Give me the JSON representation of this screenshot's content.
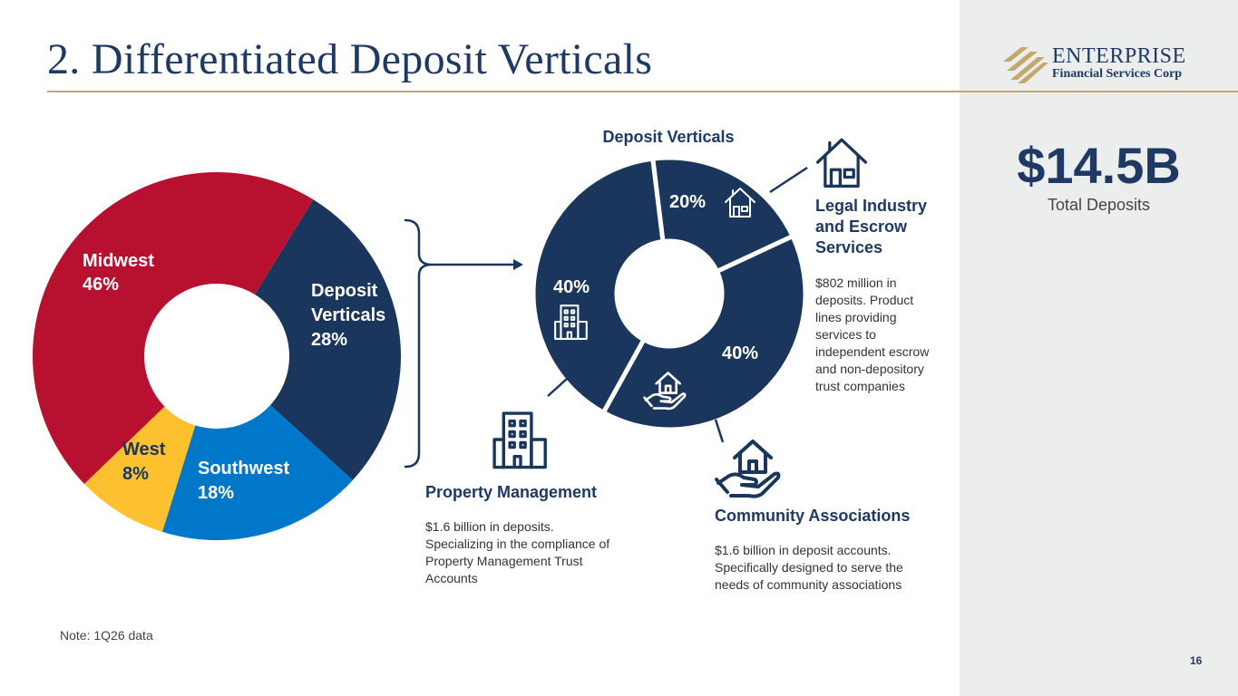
{
  "header": {
    "title": "2. Differentiated Deposit Verticals"
  },
  "logo": {
    "name": "ENTERPRISE",
    "subtitle": "Financial Services Corp"
  },
  "total": {
    "value": "$14.5B",
    "label": "Total Deposits"
  },
  "note": "Note: 1Q26 data",
  "page_number": "16",
  "colors": {
    "navy": "#1b365d",
    "red": "#b8102f",
    "yellow": "#fdc02f",
    "blue": "#0077c8",
    "gold": "#c4a76a"
  },
  "chart_data": [
    {
      "type": "pie",
      "title": "",
      "slices": [
        {
          "label": "Deposit Verticals",
          "value": 28,
          "display": [
            "Deposit",
            "Verticals",
            "28%"
          ],
          "color": "#1b365d"
        },
        {
          "label": "Southwest",
          "value": 18,
          "display": [
            "Southwest",
            "18%"
          ],
          "color": "#0077c8"
        },
        {
          "label": "West",
          "value": 8,
          "display": [
            "West",
            "8%"
          ],
          "color": "#fdc02f"
        },
        {
          "label": "Midwest",
          "value": 46,
          "display": [
            "Midwest",
            "46%"
          ],
          "color": "#b8102f"
        }
      ]
    },
    {
      "type": "pie",
      "title": "Deposit Verticals",
      "slices": [
        {
          "label": "Legal Industry and Escrow Services",
          "value": 20,
          "display": "20%",
          "icon": "house-icon"
        },
        {
          "label": "Community Associations",
          "value": 40,
          "display": "40%",
          "icon": "hand-house-icon"
        },
        {
          "label": "Property Management",
          "value": 40,
          "display": "40%",
          "icon": "building-icon"
        }
      ]
    }
  ],
  "verticals": [
    {
      "name_lines": [
        "Legal Industry",
        "and Escrow",
        "Services"
      ],
      "desc_lines": [
        "$802 million in",
        "deposits. Product",
        "lines providing",
        "services to",
        "independent escrow",
        "and non-depository",
        "trust companies"
      ]
    },
    {
      "name_lines": [
        "Community Associations"
      ],
      "desc_lines": [
        "$1.6 billion in deposit accounts.",
        "Specifically designed to serve the",
        "needs of community associations"
      ]
    },
    {
      "name_lines": [
        "Property Management"
      ],
      "desc_lines": [
        "$1.6 billion in deposits.",
        "Specializing in the compliance of",
        "Property Management Trust",
        "Accounts"
      ]
    }
  ]
}
